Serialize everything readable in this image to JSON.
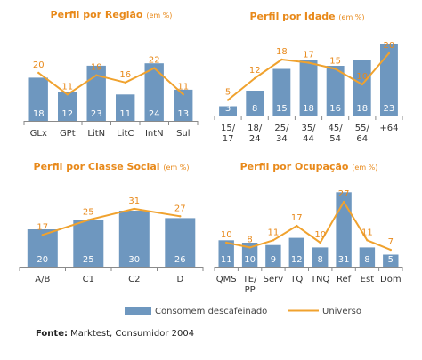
{
  "chart_data": [
    {
      "type": "bar",
      "title": "Perfil por Região",
      "unit": "(em %)",
      "categories": [
        "GLx",
        "GPt",
        "LitN",
        "LitC",
        "IntN",
        "Sul"
      ],
      "series": [
        {
          "name": "Consomem descafeinado",
          "type": "bar",
          "values": [
            18,
            12,
            23,
            11,
            24,
            13
          ]
        },
        {
          "name": "Universo",
          "type": "line",
          "values": [
            20,
            11,
            19,
            16,
            22,
            11
          ]
        }
      ]
    },
    {
      "type": "bar",
      "title": "Perfil por Idade",
      "unit": "(em %)",
      "categories": [
        "15/\n17",
        "18/\n24",
        "25/\n34",
        "35/\n44",
        "45/\n54",
        "55/\n64",
        "+64"
      ],
      "series": [
        {
          "name": "Consomem descafeinado",
          "type": "bar",
          "values": [
            3,
            8,
            15,
            18,
            16,
            18,
            23
          ]
        },
        {
          "name": "Universo",
          "type": "line",
          "values": [
            5,
            12,
            18,
            17,
            15,
            10,
            20
          ]
        }
      ]
    },
    {
      "type": "bar",
      "title": "Perfil por Classe Social",
      "unit": "(em %)",
      "categories": [
        "A/B",
        "C1",
        "C2",
        "D"
      ],
      "series": [
        {
          "name": "Consomem descafeinado",
          "type": "bar",
          "values": [
            20,
            25,
            30,
            26
          ]
        },
        {
          "name": "Universo",
          "type": "line",
          "values": [
            17,
            25,
            31,
            27
          ]
        }
      ]
    },
    {
      "type": "bar",
      "title": "Perfil por Ocupação",
      "unit": "(em %)",
      "categories": [
        "QMS",
        "TE/\nPP",
        "Serv",
        "TQ",
        "TNQ",
        "Ref",
        "Est",
        "Dom"
      ],
      "series": [
        {
          "name": "Consomem descafeinado",
          "type": "bar",
          "values": [
            11,
            10,
            9,
            12,
            8,
            31,
            8,
            5
          ]
        },
        {
          "name": "Universo",
          "type": "line",
          "values": [
            10,
            8,
            11,
            17,
            10,
            27,
            11,
            7
          ]
        }
      ]
    }
  ],
  "legend": {
    "bar_label": "Consomem descafeinado",
    "line_label": "Universo"
  },
  "source": {
    "label": "Fonte:",
    "text": " Marktest, Consumidor 2004"
  },
  "colors": {
    "bar": "#6e97bf",
    "line": "#f0a22e",
    "title": "#e8891a",
    "axis": "#8a8a8a"
  }
}
